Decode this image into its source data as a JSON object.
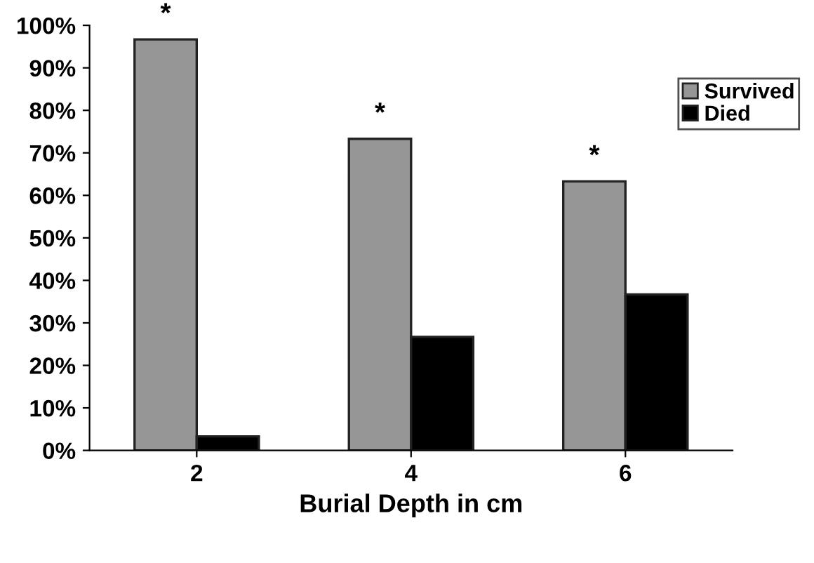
{
  "chart_data": {
    "type": "bar",
    "xlabel": "Burial Depth in cm",
    "categories": [
      "2",
      "4",
      "6"
    ],
    "series": [
      {
        "name": "Survived",
        "color": "#969696",
        "values": [
          96.7,
          73.3,
          63.3
        ]
      },
      {
        "name": "Died",
        "color": "#000000",
        "values": [
          3.3,
          26.7,
          36.7
        ]
      }
    ],
    "ylim": [
      0,
      100
    ],
    "yticks": [
      {
        "value": 0,
        "label": "0%"
      },
      {
        "value": 10,
        "label": "10%"
      },
      {
        "value": 20,
        "label": "20%"
      },
      {
        "value": 30,
        "label": "30%"
      },
      {
        "value": 40,
        "label": "40%"
      },
      {
        "value": 50,
        "label": "50%"
      },
      {
        "value": 60,
        "label": "60%"
      },
      {
        "value": 70,
        "label": "70%"
      },
      {
        "value": 80,
        "label": "80%"
      },
      {
        "value": 90,
        "label": "90%"
      },
      {
        "value": 100,
        "label": "100%"
      }
    ],
    "annotations": [
      {
        "text": "*",
        "x": "2",
        "y": 96.7
      },
      {
        "text": "*",
        "x": "4",
        "y": 73.3
      },
      {
        "text": "*",
        "x": "6",
        "y": 63.3
      }
    ],
    "grid": false,
    "legend": "top right"
  }
}
